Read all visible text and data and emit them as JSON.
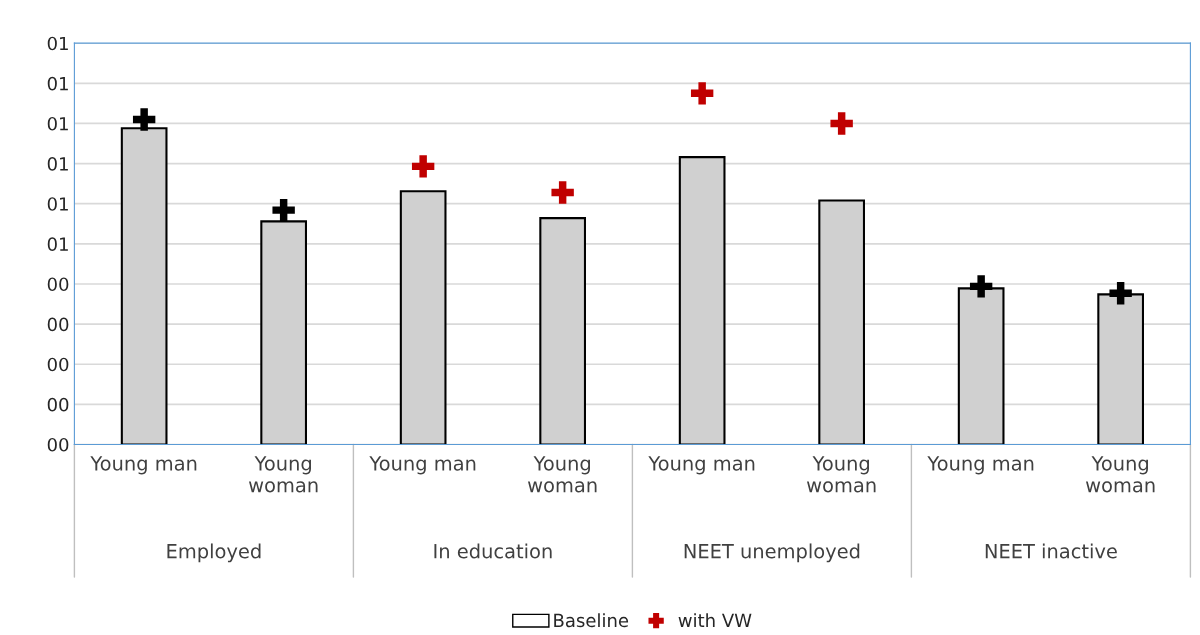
{
  "chart_data": {
    "type": "bar",
    "categories": [
      "Young man",
      "Young\nwoman",
      "Young man",
      "Young\nwoman",
      "Young man",
      "Young\nwoman",
      "Young man",
      "Young\nwoman"
    ],
    "annotations": [
      "Employed",
      "In education",
      "NEET unemployed",
      "NEET inactive"
    ],
    "series": [
      {
        "name": "Baseline",
        "color": "#d0d0d0",
        "values": [
          0.788,
          0.556,
          0.631,
          0.564,
          0.716,
          0.608,
          0.389,
          0.374
        ]
      },
      {
        "name": "with VW",
        "type": "scatter",
        "color": "#c00000",
        "colors": [
          "#000000",
          "#000000",
          "#c00000",
          "#c00000",
          "#c00000",
          "#c00000",
          "#000000",
          "#000000"
        ],
        "values": [
          0.81,
          0.584,
          0.693,
          0.628,
          0.875,
          0.8,
          0.394,
          0.377
        ]
      }
    ],
    "ylim": [
      0,
      1
    ],
    "yticks": [
      {
        "value": 0,
        "label": "00"
      },
      {
        "value": 0.1,
        "label": "00"
      },
      {
        "value": 0.2,
        "label": "00"
      },
      {
        "value": 0.3,
        "label": "00"
      },
      {
        "value": 0.4,
        "label": "00"
      },
      {
        "value": 0.5,
        "label": "01"
      },
      {
        "value": 0.6,
        "label": "01"
      },
      {
        "value": 0.7,
        "label": "01"
      },
      {
        "value": 0.8,
        "label": "01"
      },
      {
        "value": 0.9,
        "label": "01"
      },
      {
        "value": 1.0,
        "label": "01"
      }
    ],
    "grid": "y",
    "legend": "bottom",
    "marker": "cross"
  }
}
